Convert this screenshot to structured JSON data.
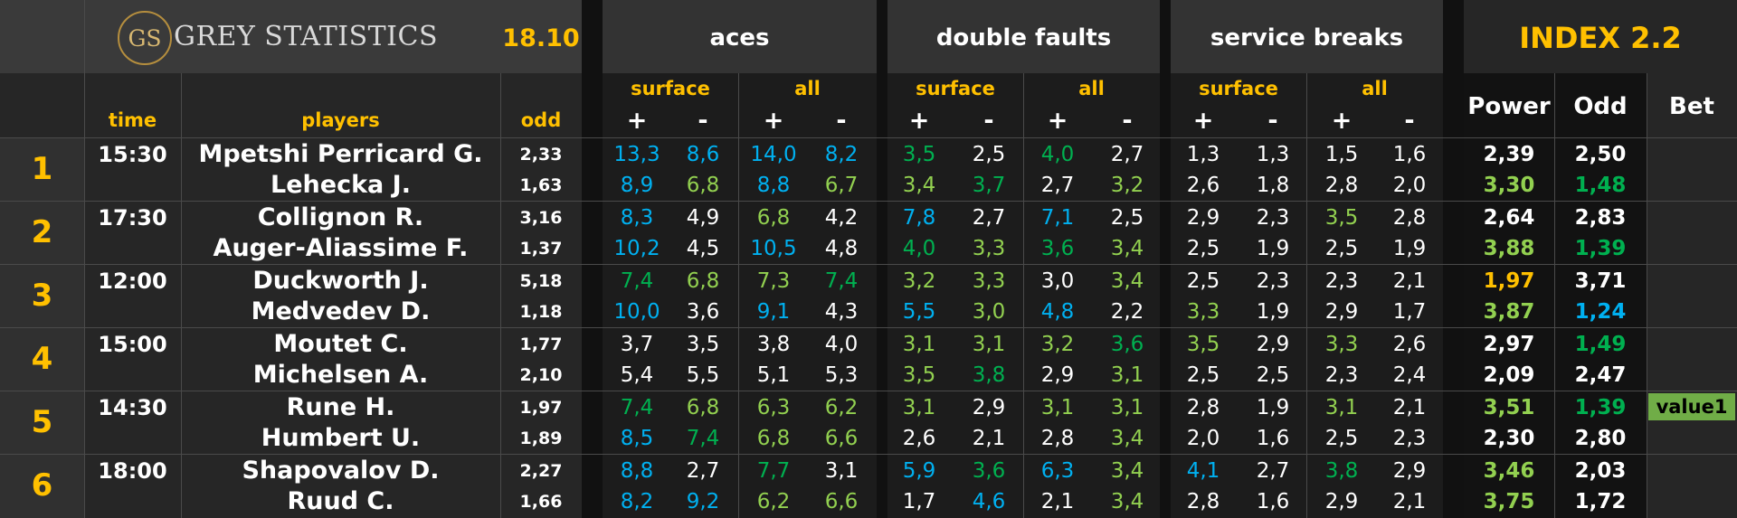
{
  "header": {
    "logo_mark": "GS",
    "logo_text": "GREY STATISTICS",
    "date": "18.10",
    "groups": [
      "aces",
      "double faults",
      "service breaks"
    ],
    "index_title": "INDEX 2.2",
    "sub_surface": "surface",
    "sub_all": "all",
    "plus": "+",
    "minus": "-",
    "col_time": "time",
    "col_players": "players",
    "col_odd": "odd",
    "col_power": "Power",
    "col_index_odd": "Odd",
    "col_bet": "Bet"
  },
  "colors": {
    "white": "#ffffff",
    "blue": "#00b0f0",
    "green": "#00b050",
    "lightgreen": "#92d050",
    "yellow": "#ffc000",
    "accent": "#ffc000"
  },
  "matches": [
    {
      "no": "1",
      "time": "15:30",
      "bet": "",
      "players": [
        {
          "name": "Mpetshi Perricard G.",
          "odd": "2,33",
          "stats": [
            [
              "13,3",
              "b"
            ],
            [
              "8,6",
              "b"
            ],
            [
              "14,0",
              "b"
            ],
            [
              "8,2",
              "b"
            ],
            [
              "3,5",
              "g"
            ],
            [
              "2,5",
              "w"
            ],
            [
              "4,0",
              "g"
            ],
            [
              "2,7",
              "w"
            ],
            [
              "1,3",
              "w"
            ],
            [
              "1,3",
              "w"
            ],
            [
              "1,5",
              "w"
            ],
            [
              "1,6",
              "w"
            ]
          ],
          "power": [
            "2,39",
            "w"
          ],
          "index_odd": [
            "2,50",
            "w"
          ]
        },
        {
          "name": "Lehecka J.",
          "odd": "1,63",
          "stats": [
            [
              "8,9",
              "b"
            ],
            [
              "6,8",
              "l"
            ],
            [
              "8,8",
              "b"
            ],
            [
              "6,7",
              "l"
            ],
            [
              "3,4",
              "l"
            ],
            [
              "3,7",
              "g"
            ],
            [
              "2,7",
              "w"
            ],
            [
              "3,2",
              "l"
            ],
            [
              "2,6",
              "w"
            ],
            [
              "1,8",
              "w"
            ],
            [
              "2,8",
              "w"
            ],
            [
              "2,0",
              "w"
            ]
          ],
          "power": [
            "3,30",
            "l"
          ],
          "index_odd": [
            "1,48",
            "g"
          ]
        }
      ]
    },
    {
      "no": "2",
      "time": "17:30",
      "bet": "",
      "players": [
        {
          "name": "Collignon R.",
          "odd": "3,16",
          "stats": [
            [
              "8,3",
              "b"
            ],
            [
              "4,9",
              "w"
            ],
            [
              "6,8",
              "l"
            ],
            [
              "4,2",
              "w"
            ],
            [
              "7,8",
              "b"
            ],
            [
              "2,7",
              "w"
            ],
            [
              "7,1",
              "b"
            ],
            [
              "2,5",
              "w"
            ],
            [
              "2,9",
              "w"
            ],
            [
              "2,3",
              "w"
            ],
            [
              "3,5",
              "l"
            ],
            [
              "2,8",
              "w"
            ]
          ],
          "power": [
            "2,64",
            "w"
          ],
          "index_odd": [
            "2,83",
            "w"
          ]
        },
        {
          "name": "Auger-Aliassime F.",
          "odd": "1,37",
          "stats": [
            [
              "10,2",
              "b"
            ],
            [
              "4,5",
              "w"
            ],
            [
              "10,5",
              "b"
            ],
            [
              "4,8",
              "w"
            ],
            [
              "4,0",
              "g"
            ],
            [
              "3,3",
              "l"
            ],
            [
              "3,6",
              "g"
            ],
            [
              "3,4",
              "l"
            ],
            [
              "2,5",
              "w"
            ],
            [
              "1,9",
              "w"
            ],
            [
              "2,5",
              "w"
            ],
            [
              "1,9",
              "w"
            ]
          ],
          "power": [
            "3,88",
            "l"
          ],
          "index_odd": [
            "1,39",
            "g"
          ]
        }
      ]
    },
    {
      "no": "3",
      "time": "12:00",
      "bet": "",
      "players": [
        {
          "name": "Duckworth J.",
          "odd": "5,18",
          "stats": [
            [
              "7,4",
              "g"
            ],
            [
              "6,8",
              "l"
            ],
            [
              "7,3",
              "l"
            ],
            [
              "7,4",
              "g"
            ],
            [
              "3,2",
              "l"
            ],
            [
              "3,3",
              "l"
            ],
            [
              "3,0",
              "w"
            ],
            [
              "3,4",
              "l"
            ],
            [
              "2,5",
              "w"
            ],
            [
              "2,3",
              "w"
            ],
            [
              "2,3",
              "w"
            ],
            [
              "2,1",
              "w"
            ]
          ],
          "power": [
            "1,97",
            "y"
          ],
          "index_odd": [
            "3,71",
            "w"
          ]
        },
        {
          "name": "Medvedev D.",
          "odd": "1,18",
          "stats": [
            [
              "10,0",
              "b"
            ],
            [
              "3,6",
              "w"
            ],
            [
              "9,1",
              "b"
            ],
            [
              "4,3",
              "w"
            ],
            [
              "5,5",
              "b"
            ],
            [
              "3,0",
              "l"
            ],
            [
              "4,8",
              "b"
            ],
            [
              "2,2",
              "w"
            ],
            [
              "3,3",
              "l"
            ],
            [
              "1,9",
              "w"
            ],
            [
              "2,9",
              "w"
            ],
            [
              "1,7",
              "w"
            ]
          ],
          "power": [
            "3,87",
            "l"
          ],
          "index_odd": [
            "1,24",
            "b"
          ]
        }
      ]
    },
    {
      "no": "4",
      "time": "15:00",
      "bet": "",
      "players": [
        {
          "name": "Moutet C.",
          "odd": "1,77",
          "stats": [
            [
              "3,7",
              "w"
            ],
            [
              "3,5",
              "w"
            ],
            [
              "3,8",
              "w"
            ],
            [
              "4,0",
              "w"
            ],
            [
              "3,1",
              "l"
            ],
            [
              "3,1",
              "l"
            ],
            [
              "3,2",
              "l"
            ],
            [
              "3,6",
              "g"
            ],
            [
              "3,5",
              "l"
            ],
            [
              "2,9",
              "w"
            ],
            [
              "3,3",
              "l"
            ],
            [
              "2,6",
              "w"
            ]
          ],
          "power": [
            "2,97",
            "w"
          ],
          "index_odd": [
            "1,49",
            "g"
          ]
        },
        {
          "name": "Michelsen A.",
          "odd": "2,10",
          "stats": [
            [
              "5,4",
              "w"
            ],
            [
              "5,5",
              "w"
            ],
            [
              "5,1",
              "w"
            ],
            [
              "5,3",
              "w"
            ],
            [
              "3,5",
              "l"
            ],
            [
              "3,8",
              "g"
            ],
            [
              "2,9",
              "w"
            ],
            [
              "3,1",
              "l"
            ],
            [
              "2,5",
              "w"
            ],
            [
              "2,5",
              "w"
            ],
            [
              "2,3",
              "w"
            ],
            [
              "2,4",
              "w"
            ]
          ],
          "power": [
            "2,09",
            "w"
          ],
          "index_odd": [
            "2,47",
            "w"
          ]
        }
      ]
    },
    {
      "no": "5",
      "time": "14:30",
      "bet": "value1",
      "players": [
        {
          "name": "Rune H.",
          "odd": "1,97",
          "stats": [
            [
              "7,4",
              "g"
            ],
            [
              "6,8",
              "l"
            ],
            [
              "6,3",
              "l"
            ],
            [
              "6,2",
              "l"
            ],
            [
              "3,1",
              "l"
            ],
            [
              "2,9",
              "w"
            ],
            [
              "3,1",
              "l"
            ],
            [
              "3,1",
              "l"
            ],
            [
              "2,8",
              "w"
            ],
            [
              "1,9",
              "w"
            ],
            [
              "3,1",
              "l"
            ],
            [
              "2,1",
              "w"
            ]
          ],
          "power": [
            "3,51",
            "l"
          ],
          "index_odd": [
            "1,39",
            "g"
          ]
        },
        {
          "name": "Humbert U.",
          "odd": "1,89",
          "stats": [
            [
              "8,5",
              "b"
            ],
            [
              "7,4",
              "g"
            ],
            [
              "6,8",
              "l"
            ],
            [
              "6,6",
              "l"
            ],
            [
              "2,6",
              "w"
            ],
            [
              "2,1",
              "w"
            ],
            [
              "2,8",
              "w"
            ],
            [
              "3,4",
              "l"
            ],
            [
              "2,0",
              "w"
            ],
            [
              "1,6",
              "w"
            ],
            [
              "2,5",
              "w"
            ],
            [
              "2,3",
              "w"
            ]
          ],
          "power": [
            "2,30",
            "w"
          ],
          "index_odd": [
            "2,80",
            "w"
          ]
        }
      ]
    },
    {
      "no": "6",
      "time": "18:00",
      "bet": "",
      "players": [
        {
          "name": "Shapovalov D.",
          "odd": "2,27",
          "stats": [
            [
              "8,8",
              "b"
            ],
            [
              "2,7",
              "w"
            ],
            [
              "7,7",
              "g"
            ],
            [
              "3,1",
              "w"
            ],
            [
              "5,9",
              "b"
            ],
            [
              "3,6",
              "g"
            ],
            [
              "6,3",
              "b"
            ],
            [
              "3,4",
              "l"
            ],
            [
              "4,1",
              "b"
            ],
            [
              "2,7",
              "w"
            ],
            [
              "3,8",
              "g"
            ],
            [
              "2,9",
              "w"
            ]
          ],
          "power": [
            "3,46",
            "l"
          ],
          "index_odd": [
            "2,03",
            "w"
          ]
        },
        {
          "name": "Ruud C.",
          "odd": "1,66",
          "stats": [
            [
              "8,2",
              "b"
            ],
            [
              "9,2",
              "b"
            ],
            [
              "6,2",
              "l"
            ],
            [
              "6,6",
              "l"
            ],
            [
              "1,7",
              "w"
            ],
            [
              "4,6",
              "b"
            ],
            [
              "2,1",
              "w"
            ],
            [
              "3,4",
              "l"
            ],
            [
              "2,8",
              "w"
            ],
            [
              "1,6",
              "w"
            ],
            [
              "2,9",
              "w"
            ],
            [
              "2,1",
              "w"
            ]
          ],
          "power": [
            "3,75",
            "l"
          ],
          "index_odd": [
            "1,72",
            "w"
          ]
        }
      ]
    }
  ]
}
